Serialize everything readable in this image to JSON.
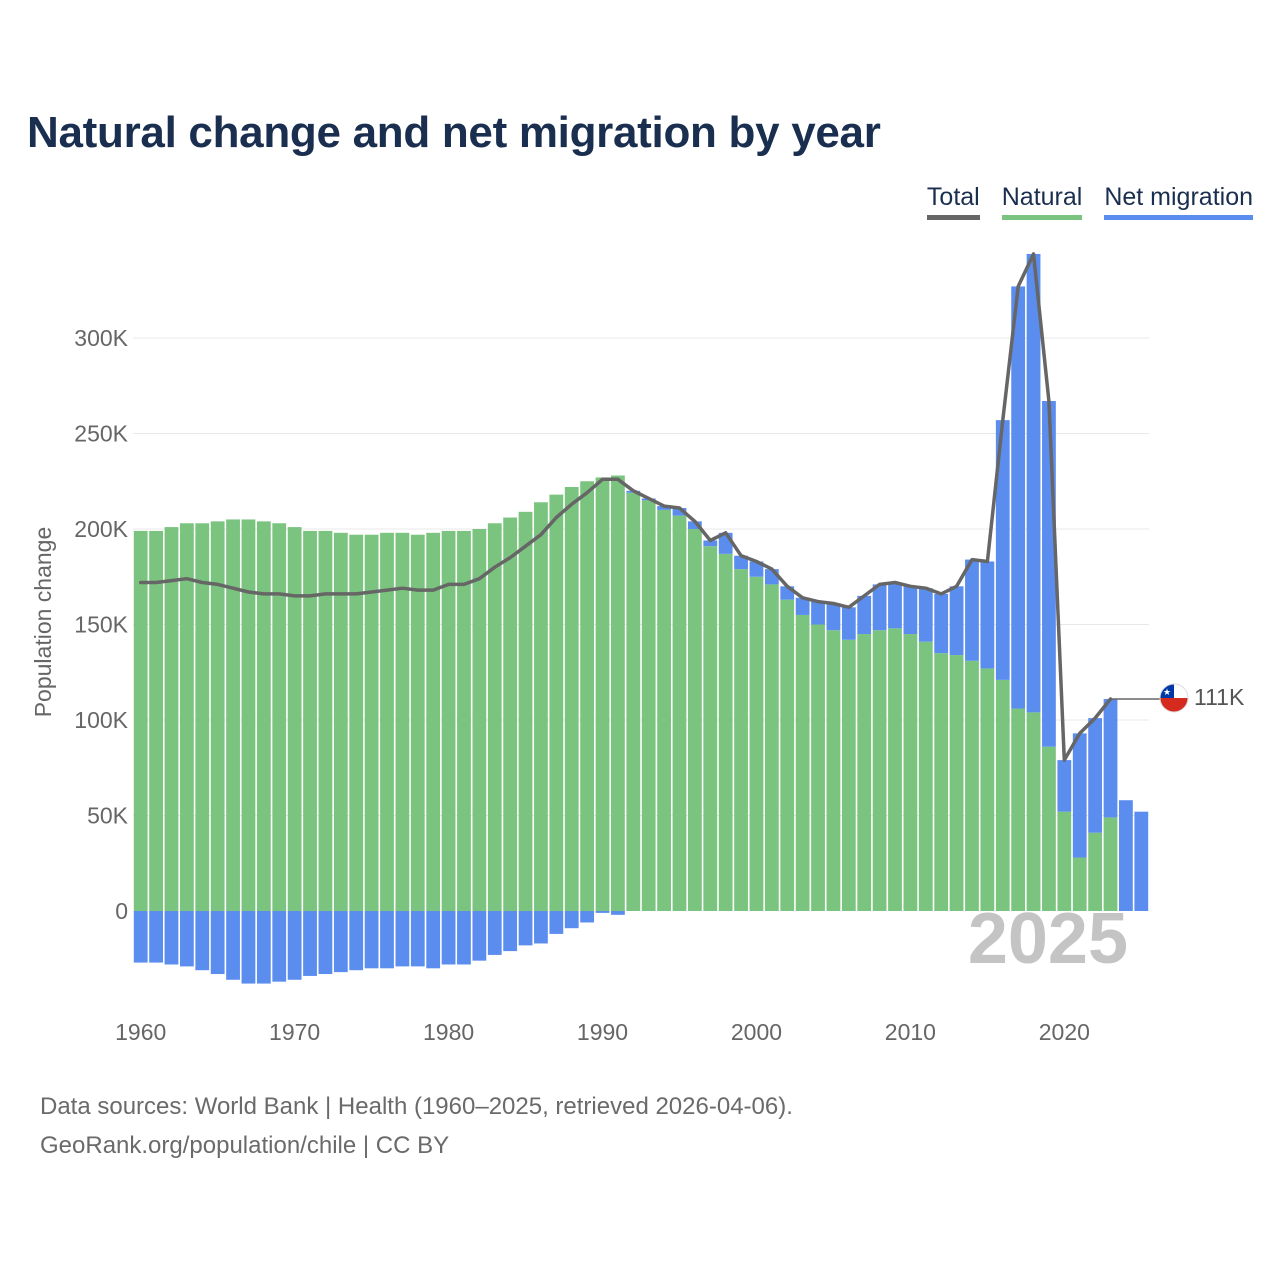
{
  "title": "Natural change and net migration by year",
  "legend": [
    {
      "label": "Total",
      "color": "#666666"
    },
    {
      "label": "Natural",
      "color": "#7bc47f"
    },
    {
      "label": "Net migration",
      "color": "#5b8def"
    }
  ],
  "footer": {
    "line1": "Data sources: World Bank | Health (1960–2025, retrieved 2026-04-06).",
    "line2": "GeoRank.org/population/chile | CC BY"
  },
  "chart_data": {
    "type": "bar",
    "title": "Natural change and net migration by year",
    "ylabel": "Population change",
    "xlabel": "",
    "ylim": [
      -50000,
      350000
    ],
    "xlim": [
      1959.5,
      2025.5
    ],
    "y_ticks": [
      0,
      50000,
      100000,
      150000,
      200000,
      250000,
      300000
    ],
    "y_tick_labels": [
      "0",
      "50K",
      "100K",
      "150K",
      "200K",
      "250K",
      "300K"
    ],
    "x_ticks": [
      1960,
      1970,
      1980,
      1990,
      2000,
      2010,
      2020
    ],
    "x_tick_labels": [
      "1960",
      "1970",
      "1980",
      "1990",
      "2000",
      "2010",
      "2020"
    ],
    "year_watermark": "2025",
    "end_label": "111K",
    "series": [
      {
        "name": "Natural",
        "color": "#7bc47f",
        "years": [
          1960,
          1961,
          1962,
          1963,
          1964,
          1965,
          1966,
          1967,
          1968,
          1969,
          1970,
          1971,
          1972,
          1973,
          1974,
          1975,
          1976,
          1977,
          1978,
          1979,
          1980,
          1981,
          1982,
          1983,
          1984,
          1985,
          1986,
          1987,
          1988,
          1989,
          1990,
          1991,
          1992,
          1993,
          1994,
          1995,
          1996,
          1997,
          1998,
          1999,
          2000,
          2001,
          2002,
          2003,
          2004,
          2005,
          2006,
          2007,
          2008,
          2009,
          2010,
          2011,
          2012,
          2013,
          2014,
          2015,
          2016,
          2017,
          2018,
          2019,
          2020,
          2021,
          2022,
          2023
        ],
        "values": [
          199000,
          199000,
          201000,
          203000,
          203000,
          204000,
          205000,
          205000,
          204000,
          203000,
          201000,
          199000,
          199000,
          198000,
          197000,
          197000,
          198000,
          198000,
          197000,
          198000,
          199000,
          199000,
          200000,
          203000,
          206000,
          209000,
          214000,
          218000,
          222000,
          225000,
          227000,
          228000,
          219000,
          215000,
          210000,
          207000,
          200000,
          191000,
          187000,
          179000,
          175000,
          171000,
          163000,
          155000,
          150000,
          147000,
          142000,
          145000,
          147000,
          148000,
          145000,
          141000,
          135000,
          134000,
          131000,
          127000,
          121000,
          106000,
          104000,
          86000,
          52000,
          28000,
          41000,
          49000
        ]
      },
      {
        "name": "Net migration",
        "color": "#5b8def",
        "years": [
          1960,
          1961,
          1962,
          1963,
          1964,
          1965,
          1966,
          1967,
          1968,
          1969,
          1970,
          1971,
          1972,
          1973,
          1974,
          1975,
          1976,
          1977,
          1978,
          1979,
          1980,
          1981,
          1982,
          1983,
          1984,
          1985,
          1986,
          1987,
          1988,
          1989,
          1990,
          1991,
          1992,
          1993,
          1994,
          1995,
          1996,
          1997,
          1998,
          1999,
          2000,
          2001,
          2002,
          2003,
          2004,
          2005,
          2006,
          2007,
          2008,
          2009,
          2010,
          2011,
          2012,
          2013,
          2014,
          2015,
          2016,
          2017,
          2018,
          2019,
          2020,
          2021,
          2022,
          2023,
          2024,
          2025
        ],
        "values": [
          -27000,
          -27000,
          -28000,
          -29000,
          -31000,
          -33000,
          -36000,
          -38000,
          -38000,
          -37000,
          -36000,
          -34000,
          -33000,
          -32000,
          -31000,
          -30000,
          -30000,
          -29000,
          -29000,
          -30000,
          -28000,
          -28000,
          -26000,
          -23000,
          -21000,
          -18000,
          -17000,
          -12000,
          -9000,
          -6000,
          -1000,
          -2000,
          1000,
          1000,
          2000,
          4000,
          4000,
          3000,
          11000,
          7000,
          8000,
          8000,
          7000,
          9000,
          12000,
          14000,
          17000,
          20000,
          24000,
          24000,
          25000,
          28000,
          31000,
          36000,
          53000,
          56000,
          136000,
          221000,
          240000,
          181000,
          27000,
          65000,
          60000,
          62000,
          58000,
          52000
        ]
      },
      {
        "name": "Total",
        "color": "#666666",
        "type": "line",
        "years": [
          1960,
          1961,
          1962,
          1963,
          1964,
          1965,
          1966,
          1967,
          1968,
          1969,
          1970,
          1971,
          1972,
          1973,
          1974,
          1975,
          1976,
          1977,
          1978,
          1979,
          1980,
          1981,
          1982,
          1983,
          1984,
          1985,
          1986,
          1987,
          1988,
          1989,
          1990,
          1991,
          1992,
          1993,
          1994,
          1995,
          1996,
          1997,
          1998,
          1999,
          2000,
          2001,
          2002,
          2003,
          2004,
          2005,
          2006,
          2007,
          2008,
          2009,
          2010,
          2011,
          2012,
          2013,
          2014,
          2015,
          2016,
          2017,
          2018,
          2019,
          2020,
          2021,
          2022,
          2023
        ],
        "values": [
          172000,
          172000,
          173000,
          174000,
          172000,
          171000,
          169000,
          167000,
          166000,
          166000,
          165000,
          165000,
          166000,
          166000,
          166000,
          167000,
          168000,
          169000,
          168000,
          168000,
          171000,
          171000,
          174000,
          180000,
          185000,
          191000,
          197000,
          206000,
          213000,
          219000,
          226000,
          226000,
          220000,
          216000,
          212000,
          211000,
          204000,
          194000,
          198000,
          186000,
          183000,
          179000,
          170000,
          164000,
          162000,
          161000,
          159000,
          165000,
          171000,
          172000,
          170000,
          169000,
          166000,
          170000,
          184000,
          183000,
          257000,
          327000,
          344000,
          267000,
          79000,
          93000,
          101000,
          111000
        ]
      }
    ]
  }
}
